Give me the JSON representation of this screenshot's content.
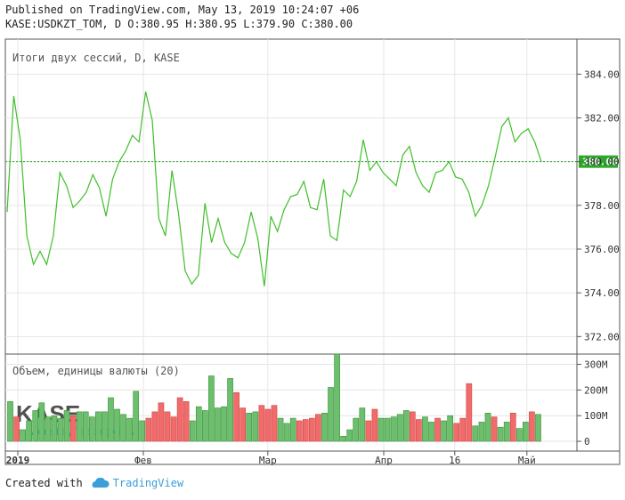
{
  "header": {
    "published": "Published on TradingView.com, May 13, 2019 10:24:07 +06",
    "symbol_line": "KASE:USDKZT_TOM, D O:380.95 H:380.95 L:379.90 C:380.00"
  },
  "footer": {
    "created_with": "Created with",
    "brand": "TradingView"
  },
  "watermark": {
    "logo": "KASE",
    "powered": "powered by TradingView"
  },
  "colors": {
    "line": "#3fbf2a",
    "last_price": "#2da82a",
    "vol_up": "#6cbf6c",
    "vol_down": "#f26b6b",
    "grid": "#e6e6e6",
    "border": "#555555"
  },
  "chart_data": [
    {
      "type": "line",
      "title": "Итоги двух сессий, D, KASE",
      "x_ticks": [
        "2019",
        "Фев",
        "Мар",
        "Апр",
        "16",
        "Май"
      ],
      "y_ticks": [
        "384.00",
        "382.00",
        "380.00",
        "378.00",
        "376.00",
        "374.00",
        "372.00"
      ],
      "ylim": [
        371.2,
        385.6
      ],
      "last_price": "380.00",
      "grid": true,
      "values": [
        377.7,
        383.0,
        381.0,
        376.6,
        375.3,
        375.9,
        375.3,
        376.6,
        379.5,
        378.9,
        377.9,
        378.2,
        378.6,
        379.4,
        378.8,
        377.5,
        379.2,
        380.0,
        380.5,
        381.2,
        380.9,
        383.2,
        381.9,
        377.4,
        376.6,
        379.6,
        377.6,
        375.0,
        374.4,
        374.8,
        378.1,
        376.3,
        377.4,
        376.3,
        375.8,
        375.6,
        376.3,
        377.7,
        376.5,
        374.3,
        377.5,
        376.8,
        377.8,
        378.4,
        378.5,
        379.1,
        377.9,
        377.8,
        379.2,
        376.6,
        376.4,
        378.7,
        378.4,
        379.1,
        381.0,
        379.6,
        380.0,
        379.5,
        379.2,
        378.9,
        380.3,
        380.7,
        379.5,
        378.9,
        378.6,
        379.5,
        379.6,
        380.0,
        379.3,
        379.2,
        378.6,
        377.5,
        378.0,
        378.9,
        380.2,
        381.6,
        382.0,
        380.9,
        381.3,
        381.5,
        380.9,
        380.0
      ]
    },
    {
      "type": "bar",
      "title": "Объем, единицы валюты (20)",
      "y_ticks": [
        "300M",
        "200M",
        "100M",
        "0"
      ],
      "ylim": [
        -38,
        340
      ],
      "values": [
        155,
        95,
        45,
        80,
        120,
        150,
        95,
        100,
        90,
        120,
        100,
        115,
        115,
        95,
        115,
        115,
        170,
        125,
        105,
        90,
        195,
        80,
        90,
        115,
        150,
        115,
        95,
        170,
        155,
        80,
        135,
        120,
        255,
        130,
        135,
        245,
        190,
        130,
        110,
        115,
        140,
        125,
        140,
        90,
        70,
        90,
        80,
        85,
        90,
        105,
        110,
        210,
        340,
        20,
        45,
        90,
        130,
        80,
        125,
        90,
        90,
        95,
        105,
        120,
        115,
        85,
        95,
        75,
        90,
        80,
        100,
        70,
        90,
        225,
        60,
        75,
        110,
        95,
        55,
        75,
        110,
        50,
        75,
        115,
        105
      ],
      "directions": [
        "u",
        "d",
        "u",
        "u",
        "u",
        "u",
        "u",
        "u",
        "u",
        "u",
        "d",
        "u",
        "u",
        "u",
        "u",
        "u",
        "u",
        "u",
        "u",
        "u",
        "u",
        "u",
        "d",
        "d",
        "d",
        "d",
        "d",
        "d",
        "d",
        "u",
        "u",
        "u",
        "u",
        "u",
        "u",
        "u",
        "d",
        "d",
        "u",
        "u",
        "d",
        "d",
        "d",
        "u",
        "u",
        "u",
        "d",
        "d",
        "d",
        "d",
        "u",
        "u",
        "u",
        "u",
        "u",
        "u",
        "u",
        "d",
        "d",
        "u",
        "u",
        "u",
        "u",
        "u",
        "d",
        "d",
        "u",
        "u",
        "d",
        "u",
        "u",
        "d",
        "d",
        "d",
        "u",
        "u",
        "u",
        "d",
        "u",
        "u",
        "d",
        "u",
        "u",
        "d",
        "u"
      ]
    }
  ]
}
